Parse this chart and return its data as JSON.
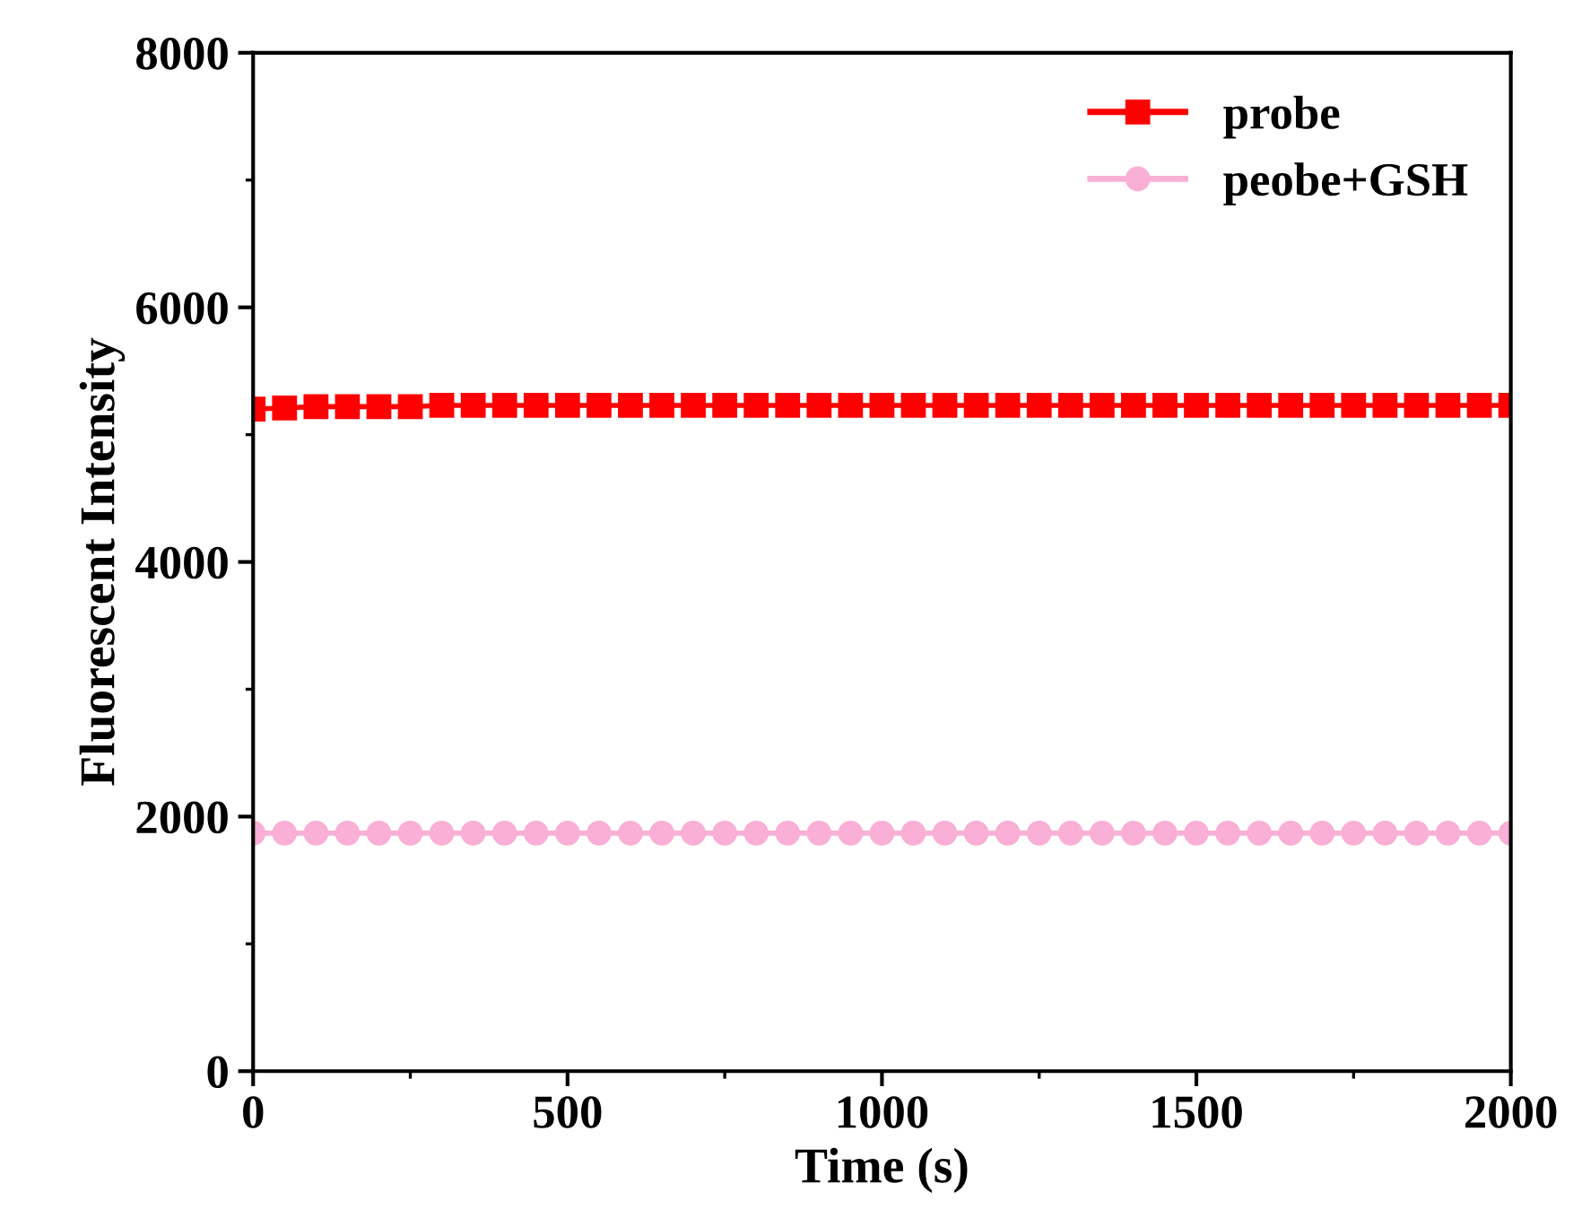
{
  "chart_data": {
    "type": "line",
    "xlabel": "Time (s)",
    "ylabel": "Fluorescent Intensity",
    "x": [
      0,
      50,
      100,
      150,
      200,
      250,
      300,
      350,
      400,
      450,
      500,
      550,
      600,
      650,
      700,
      750,
      800,
      850,
      900,
      950,
      1000,
      1050,
      1100,
      1150,
      1200,
      1250,
      1300,
      1350,
      1400,
      1450,
      1500,
      1550,
      1600,
      1650,
      1700,
      1750,
      1800,
      1850,
      1900,
      1950,
      2000
    ],
    "series": [
      {
        "name": "probe",
        "color": "#ff0000",
        "marker": "square",
        "values": [
          5200,
          5210,
          5220,
          5220,
          5220,
          5220,
          5230,
          5230,
          5230,
          5230,
          5230,
          5230,
          5230,
          5230,
          5230,
          5230,
          5230,
          5230,
          5230,
          5230,
          5230,
          5230,
          5230,
          5230,
          5230,
          5230,
          5230,
          5230,
          5230,
          5230,
          5230,
          5230,
          5230,
          5230,
          5230,
          5230,
          5230,
          5230,
          5230,
          5230,
          5230
        ]
      },
      {
        "name": "peobe+GSH",
        "color": "#f9afd6",
        "marker": "circle",
        "values": [
          1870,
          1870,
          1870,
          1870,
          1870,
          1870,
          1870,
          1870,
          1870,
          1870,
          1870,
          1870,
          1870,
          1870,
          1870,
          1870,
          1870,
          1870,
          1870,
          1870,
          1870,
          1870,
          1870,
          1870,
          1870,
          1870,
          1870,
          1870,
          1870,
          1870,
          1870,
          1870,
          1870,
          1870,
          1870,
          1870,
          1870,
          1870,
          1870,
          1870,
          1870
        ]
      }
    ],
    "xlim": [
      0,
      2000
    ],
    "xticks": [
      0,
      500,
      1000,
      1500,
      2000
    ],
    "ylim": [
      0,
      8000
    ],
    "yticks": [
      0,
      2000,
      4000,
      6000,
      8000
    ],
    "grid": false,
    "legend": "top right"
  }
}
